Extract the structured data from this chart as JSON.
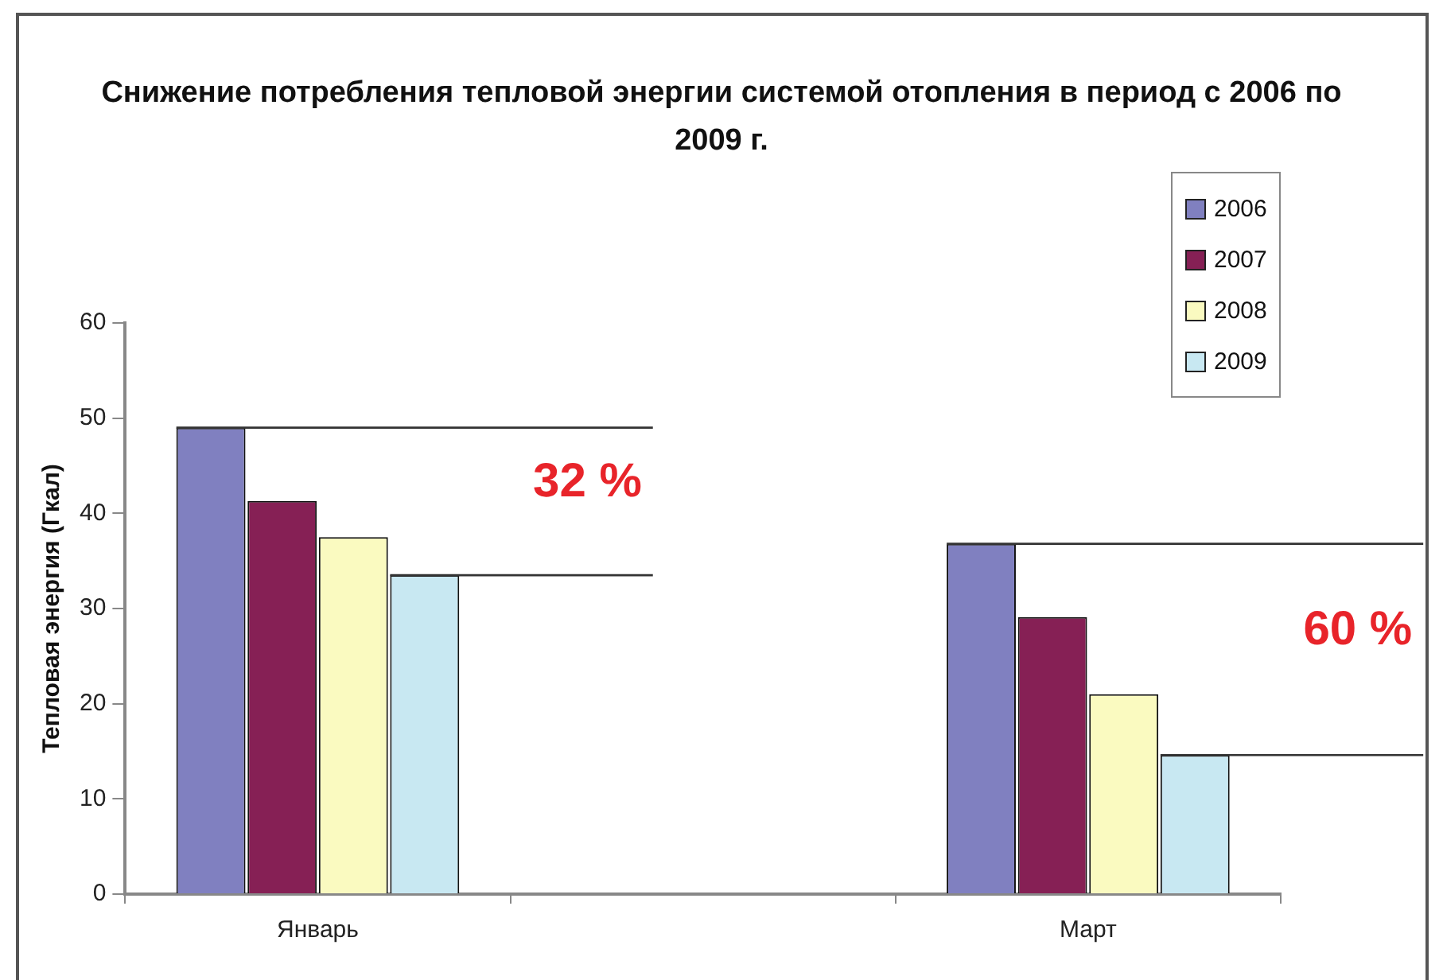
{
  "chart_data": {
    "type": "bar",
    "title": "Снижение потребления тепловой энергии системой отопления в период с 2006 по 2009 г.",
    "ylabel": "Тепловая энергия (Гкал)",
    "categories": [
      "Январь",
      null,
      "Март"
    ],
    "series": [
      {
        "name": "2006",
        "color": "#8080c0",
        "values": [
          49,
          null,
          36.8
        ]
      },
      {
        "name": "2007",
        "color": "#862055",
        "values": [
          41.3,
          null,
          29.1
        ]
      },
      {
        "name": "2008",
        "color": "#fafac0",
        "values": [
          37.5,
          null,
          21
        ]
      },
      {
        "name": "2009",
        "color": "#c8e8f2",
        "values": [
          33.5,
          null,
          14.6
        ]
      }
    ],
    "ylim": [
      0,
      60
    ],
    "yticks": [
      0,
      10,
      20,
      30,
      40,
      50,
      60
    ],
    "grid": false,
    "legend": "top right",
    "ref_lines": [
      {
        "axis": "y",
        "value": 49,
        "color": "#333333"
      },
      {
        "axis": "y",
        "value": 33.5,
        "color": "#333333"
      },
      {
        "axis": "y",
        "value": 36.8,
        "color": "#333333"
      },
      {
        "axis": "y",
        "value": 14.6,
        "color": "#333333"
      }
    ],
    "annotations": [
      "32 %",
      "60 %"
    ]
  }
}
